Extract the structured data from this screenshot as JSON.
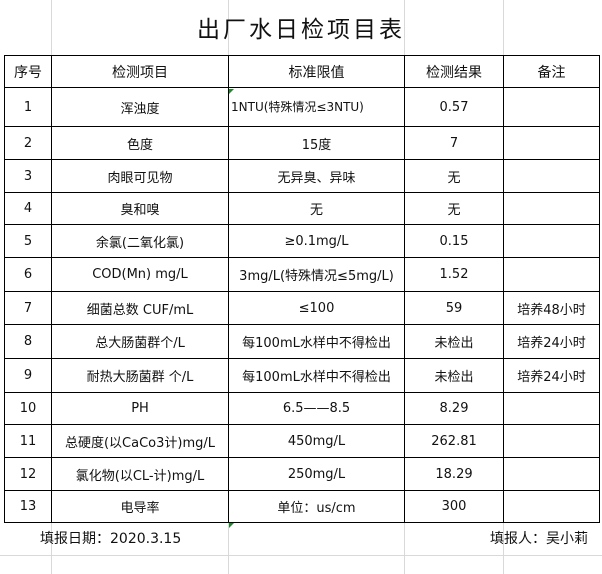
{
  "title": "出厂水日检项目表",
  "columns": [
    "序号",
    "检测项目",
    "标准限值",
    "检测结果",
    "备注"
  ],
  "rows": [
    [
      "1",
      "浑浊度",
      "1NTU(特殊情况≤3NTU)",
      "0.57",
      ""
    ],
    [
      "2",
      "色度",
      "15度",
      "7",
      ""
    ],
    [
      "3",
      "肉眼可见物",
      "无异臭、异味",
      "无",
      ""
    ],
    [
      "4",
      "臭和嗅",
      "无",
      "无",
      ""
    ],
    [
      "5",
      "余氯(二氧化氯)",
      "≥0.1mg/L",
      "0.15",
      ""
    ],
    [
      "6",
      "COD(Mn)  mg/L",
      "3mg/L(特殊情况≤5mg/L)",
      "1.52",
      ""
    ],
    [
      "7",
      "细菌总数 CUF/mL",
      "≤100",
      "59",
      "培养48小时"
    ],
    [
      "8",
      "总大肠菌群个/L",
      "每100mL水样中不得检出",
      "未检出",
      "培养24小时"
    ],
    [
      "9",
      "耐热大肠菌群 个/L",
      "每100mL水样中不得检出",
      "未检出",
      "培养24小时"
    ],
    [
      "10",
      "PH",
      "6.5——8.5",
      "8.29",
      ""
    ],
    [
      "11",
      "总硬度(以CaCo3计)mg/L",
      "450mg/L",
      "262.81",
      ""
    ],
    [
      "12",
      "氯化物(以CL-计)mg/L",
      "250mg/L",
      "18.29",
      ""
    ],
    [
      "13",
      "电导率",
      "单位：us/cm",
      "300",
      ""
    ]
  ],
  "footer": {
    "date_label": "填报日期：2020.3.15",
    "reporter_label": "填报人：吴小莉"
  }
}
